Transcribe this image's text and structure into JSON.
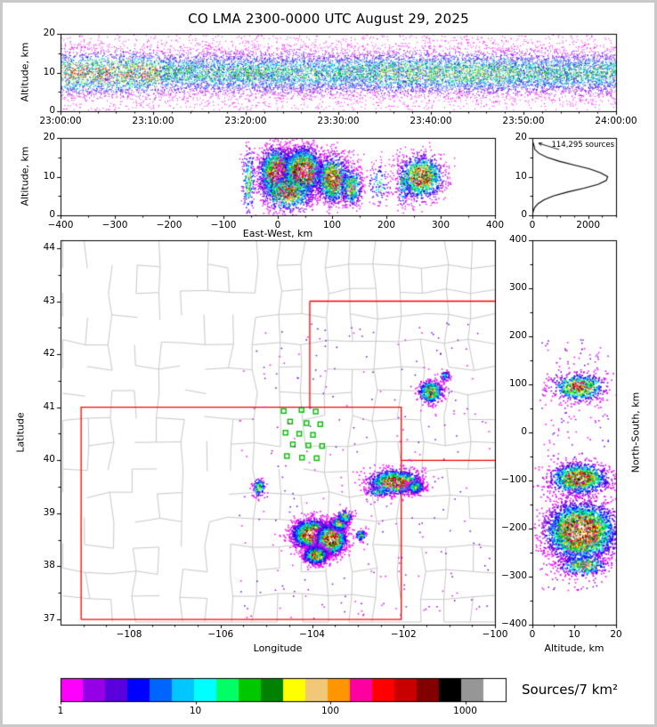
{
  "title": "CO LMA 2300-0000 UTC August 29, 2025",
  "colorbar": {
    "label": "Sources/7 km²",
    "tick_labels": [
      "1",
      "10",
      "100",
      "1000"
    ],
    "tick_log_positions": [
      0,
      1,
      2,
      3
    ],
    "log_max": 3.3,
    "colors": [
      "#FF00FF",
      "#9600E6",
      "#5A00DC",
      "#0000FF",
      "#0064FF",
      "#00C8FF",
      "#00FFFF",
      "#00FF64",
      "#00C800",
      "#008200",
      "#FFFF00",
      "#F0C878",
      "#FF9600",
      "#FF00A0",
      "#FF0000",
      "#C80000",
      "#820000",
      "#000000",
      "#969696",
      "#FFFFFF"
    ]
  },
  "chart_data": [
    {
      "id": "time_height_panel",
      "type": "scatter",
      "xlabel": "",
      "ylabel": "Altitude, km",
      "x_range": [
        0,
        3600
      ],
      "x_ticks": [
        0,
        600,
        1200,
        1800,
        2400,
        3000,
        3600
      ],
      "x_tick_labels": [
        "23:00:00",
        "23:10:00",
        "23:20:00",
        "23:30:00",
        "23:40:00",
        "23:50:00",
        "24:00:00"
      ],
      "y_range": [
        0,
        20
      ],
      "y_ticks": [
        0,
        10,
        20
      ],
      "y_tick_labels": [
        "0",
        "10",
        "20"
      ],
      "sim": {
        "n": 16000,
        "uniform_frac": 0.12,
        "alt_mean": 9.9,
        "alt_sd": 3.1,
        "core_sd": 2.9,
        "dense_until_s": 650,
        "dense_boost": 1.55,
        "mid_window_s": [
          2050,
          2950
        ],
        "mid_boost": 1.18,
        "scale": 0.55,
        "cap": 0.82
      }
    },
    {
      "id": "east_west_panel",
      "type": "scatter",
      "xlabel": "East-West, km",
      "ylabel": "Altitude, km",
      "x_range": [
        -400,
        400
      ],
      "x_ticks": [
        -400,
        -300,
        -200,
        -100,
        0,
        100,
        200,
        300,
        400
      ],
      "x_tick_labels": [
        "−400",
        "−300",
        "−200",
        "−100",
        "0",
        "100",
        "200",
        "300",
        "400"
      ],
      "y_range": [
        0,
        20
      ],
      "y_ticks": [
        0,
        10,
        20
      ],
      "y_tick_labels": [
        "0",
        "10",
        "20"
      ],
      "clusters": [
        {
          "x": -2,
          "y": 11,
          "sx": 16,
          "sy": 3.2,
          "n": 2400,
          "intensity": 0.95
        },
        {
          "x": 45,
          "y": 11.5,
          "sx": 18,
          "sy": 3.0,
          "n": 3000,
          "intensity": 1.0
        },
        {
          "x": 18,
          "y": 6,
          "sx": 25,
          "sy": 2.5,
          "n": 800,
          "intensity": 0.7
        },
        {
          "x": 100,
          "y": 9.5,
          "sx": 15,
          "sy": 3.0,
          "n": 1400,
          "intensity": 0.85
        },
        {
          "x": 135,
          "y": 7.5,
          "sx": 10,
          "sy": 2.5,
          "n": 450,
          "intensity": 0.6
        },
        {
          "x": 263,
          "y": 10,
          "sx": 20,
          "sy": 2.8,
          "n": 1300,
          "intensity": 0.85
        },
        {
          "x": -55,
          "y": 9,
          "sx": 6,
          "sy": 4.5,
          "n": 220,
          "intensity": 0.55
        },
        {
          "x": 185,
          "y": 8,
          "sx": 10,
          "sy": 2.5,
          "n": 110,
          "intensity": 0.4
        },
        {
          "x": 230,
          "y": 8,
          "sx": 6,
          "sy": 3.0,
          "n": 120,
          "intensity": 0.45
        }
      ],
      "noise": {
        "x": [
          -70,
          320
        ],
        "y": [
          2.5,
          17.5
        ],
        "n": 260
      }
    },
    {
      "id": "altitude_histogram_panel",
      "type": "line",
      "annotation": "114,295 sources",
      "xlabel": "",
      "ylabel": "",
      "x_range": [
        0,
        3000
      ],
      "x_ticks": [
        0,
        2000
      ],
      "x_tick_labels": [
        "0",
        "2000"
      ],
      "y_range": [
        0,
        20
      ],
      "y_ticks": [
        0,
        10,
        20
      ],
      "y_tick_labels": [
        "0",
        "10",
        "20"
      ],
      "profile_alt_km_vs_count": [
        [
          0,
          0
        ],
        [
          1,
          30
        ],
        [
          2,
          80
        ],
        [
          3,
          200
        ],
        [
          4,
          420
        ],
        [
          5,
          750
        ],
        [
          6,
          1250
        ],
        [
          7,
          1850
        ],
        [
          8,
          2350
        ],
        [
          9,
          2650
        ],
        [
          10,
          2700
        ],
        [
          11,
          2450
        ],
        [
          12,
          2050
        ],
        [
          13,
          1500
        ],
        [
          14,
          950
        ],
        [
          15,
          520
        ],
        [
          16,
          240
        ],
        [
          17,
          90
        ],
        [
          18,
          60
        ],
        [
          19,
          15
        ],
        [
          20,
          0
        ]
      ]
    },
    {
      "id": "plan_view_panel",
      "type": "scatter",
      "xlabel": "Longitude",
      "ylabel": "Latitude",
      "x_range": [
        -109.5,
        -100.0
      ],
      "x_ticks": [
        -108,
        -106,
        -104,
        -102,
        -100
      ],
      "x_tick_labels": [
        "−108",
        "−106",
        "−104",
        "−102",
        "−100"
      ],
      "y_range": [
        36.9,
        44.15
      ],
      "y_ticks": [
        37,
        38,
        39,
        40,
        41,
        42,
        43,
        44
      ],
      "y_tick_labels": [
        "37",
        "38",
        "39",
        "40",
        "41",
        "42",
        "43",
        "44"
      ],
      "state_borders": [
        [
          [
            -109.05,
            37
          ],
          [
            -102.05,
            37
          ],
          [
            -102.05,
            41
          ],
          [
            -109.05,
            41
          ],
          [
            -109.05,
            37
          ]
        ],
        [
          [
            -104.05,
            41
          ],
          [
            -104.05,
            43
          ]
        ],
        [
          [
            -104.05,
            43
          ],
          [
            -100.0,
            43
          ]
        ],
        [
          [
            -102.05,
            40
          ],
          [
            -100.0,
            40
          ]
        ]
      ],
      "stations": [
        [
          -104.62,
          40.93
        ],
        [
          -104.23,
          40.95
        ],
        [
          -103.92,
          40.92
        ],
        [
          -104.48,
          40.73
        ],
        [
          -104.12,
          40.7
        ],
        [
          -103.82,
          40.68
        ],
        [
          -104.58,
          40.52
        ],
        [
          -104.28,
          40.5
        ],
        [
          -103.98,
          40.48
        ],
        [
          -104.42,
          40.3
        ],
        [
          -104.08,
          40.28
        ],
        [
          -103.78,
          40.27
        ],
        [
          -104.55,
          40.08
        ],
        [
          -104.22,
          40.05
        ],
        [
          -103.9,
          40.04
        ]
      ],
      "clusters": [
        {
          "x": -104.03,
          "y": 38.62,
          "sx": 0.2,
          "sy": 0.13,
          "n": 2600,
          "intensity": 1.0
        },
        {
          "x": -103.6,
          "y": 38.52,
          "sx": 0.16,
          "sy": 0.14,
          "n": 2200,
          "intensity": 0.95
        },
        {
          "x": -103.93,
          "y": 38.22,
          "sx": 0.13,
          "sy": 0.08,
          "n": 1000,
          "intensity": 0.8
        },
        {
          "x": -103.42,
          "y": 38.82,
          "sx": 0.1,
          "sy": 0.07,
          "n": 350,
          "intensity": 0.6
        },
        {
          "x": -102.2,
          "y": 39.6,
          "sx": 0.28,
          "sy": 0.11,
          "n": 1500,
          "intensity": 0.88
        },
        {
          "x": -101.75,
          "y": 39.5,
          "sx": 0.1,
          "sy": 0.06,
          "n": 250,
          "intensity": 0.5
        },
        {
          "x": -101.42,
          "y": 41.3,
          "sx": 0.13,
          "sy": 0.1,
          "n": 600,
          "intensity": 0.75
        },
        {
          "x": -101.1,
          "y": 41.6,
          "sx": 0.06,
          "sy": 0.05,
          "n": 70,
          "intensity": 0.35
        },
        {
          "x": -102.95,
          "y": 38.6,
          "sx": 0.06,
          "sy": 0.05,
          "n": 120,
          "intensity": 0.5
        },
        {
          "x": -103.3,
          "y": 38.95,
          "sx": 0.08,
          "sy": 0.06,
          "n": 150,
          "intensity": 0.55
        },
        {
          "x": -105.18,
          "y": 39.5,
          "sx": 0.07,
          "sy": 0.09,
          "n": 130,
          "intensity": 0.5
        },
        {
          "x": -102.55,
          "y": 39.42,
          "sx": 0.15,
          "sy": 0.05,
          "n": 100,
          "intensity": 0.4
        }
      ],
      "noise": {
        "x": [
          -105.6,
          -100.1
        ],
        "y": [
          37.0,
          42.6
        ],
        "n": 300
      }
    },
    {
      "id": "north_south_panel",
      "type": "scatter",
      "xlabel": "Altitude, km",
      "ylabel": "North-South, km",
      "x_range": [
        0,
        20
      ],
      "x_ticks": [
        0,
        10,
        20
      ],
      "x_tick_labels": [
        "0",
        "10",
        "20"
      ],
      "y_range": [
        -400,
        400
      ],
      "y_ticks": [
        -400,
        -300,
        -200,
        -100,
        0,
        100,
        200,
        300,
        400
      ],
      "y_tick_labels": [
        "−400",
        "−300",
        "−200",
        "−100",
        "0",
        "100",
        "200",
        "300",
        "400"
      ],
      "clusters": [
        {
          "x": 11,
          "y": 95,
          "sx": 3.2,
          "sy": 14,
          "n": 700,
          "intensity": 0.78
        },
        {
          "x": 11,
          "y": -95,
          "sx": 3.5,
          "sy": 16,
          "n": 1400,
          "intensity": 0.88
        },
        {
          "x": 11.5,
          "y": -205,
          "sx": 4.2,
          "sy": 30,
          "n": 3800,
          "intensity": 1.0
        },
        {
          "x": 12,
          "y": -275,
          "sx": 3.0,
          "sy": 12,
          "n": 400,
          "intensity": 0.6
        }
      ],
      "noise": {
        "x": [
          2,
          18
        ],
        "y": [
          -330,
          200
        ],
        "n": 260
      }
    }
  ]
}
